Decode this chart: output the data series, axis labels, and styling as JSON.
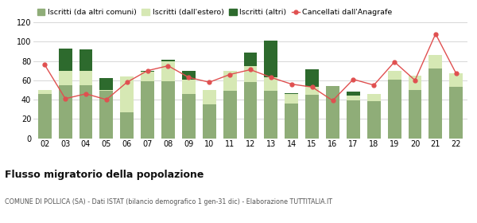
{
  "years": [
    "02",
    "03",
    "04",
    "05",
    "06",
    "07",
    "08",
    "09",
    "10",
    "11",
    "12",
    "13",
    "14",
    "15",
    "16",
    "17",
    "18",
    "19",
    "20",
    "21",
    "22"
  ],
  "iscritti_altri_comuni": [
    46,
    55,
    55,
    49,
    27,
    59,
    59,
    46,
    35,
    49,
    58,
    49,
    36,
    45,
    54,
    39,
    38,
    61,
    50,
    72,
    53
  ],
  "iscritti_estero": [
    4,
    15,
    15,
    1,
    37,
    10,
    21,
    15,
    15,
    21,
    17,
    14,
    10,
    8,
    0,
    5,
    8,
    9,
    15,
    14,
    14
  ],
  "iscritti_altri": [
    0,
    23,
    22,
    12,
    0,
    1,
    1,
    9,
    0,
    0,
    14,
    38,
    1,
    18,
    0,
    4,
    0,
    0,
    0,
    0,
    0
  ],
  "cancellati": [
    76,
    41,
    46,
    40,
    58,
    70,
    75,
    63,
    58,
    66,
    71,
    63,
    56,
    53,
    39,
    61,
    55,
    79,
    60,
    108,
    67
  ],
  "color_altri_comuni": "#8fad78",
  "color_estero": "#d6e8b4",
  "color_altri": "#2d6a2d",
  "color_cancellati": "#e05050",
  "legend_labels": [
    "Iscritti (da altri comuni)",
    "Iscritti (dall'estero)",
    "Iscritti (altri)",
    "Cancellati dall'Anagrafe"
  ],
  "title": "Flusso migratorio della popolazione",
  "subtitle": "COMUNE DI POLLICA (SA) - Dati ISTAT (bilancio demografico 1 gen-31 dic) - Elaborazione TUTTITALIA.IT",
  "ylim": [
    0,
    120
  ],
  "yticks": [
    0,
    20,
    40,
    60,
    80,
    100,
    120
  ],
  "background_color": "#ffffff",
  "grid_color": "#d0d0d0"
}
